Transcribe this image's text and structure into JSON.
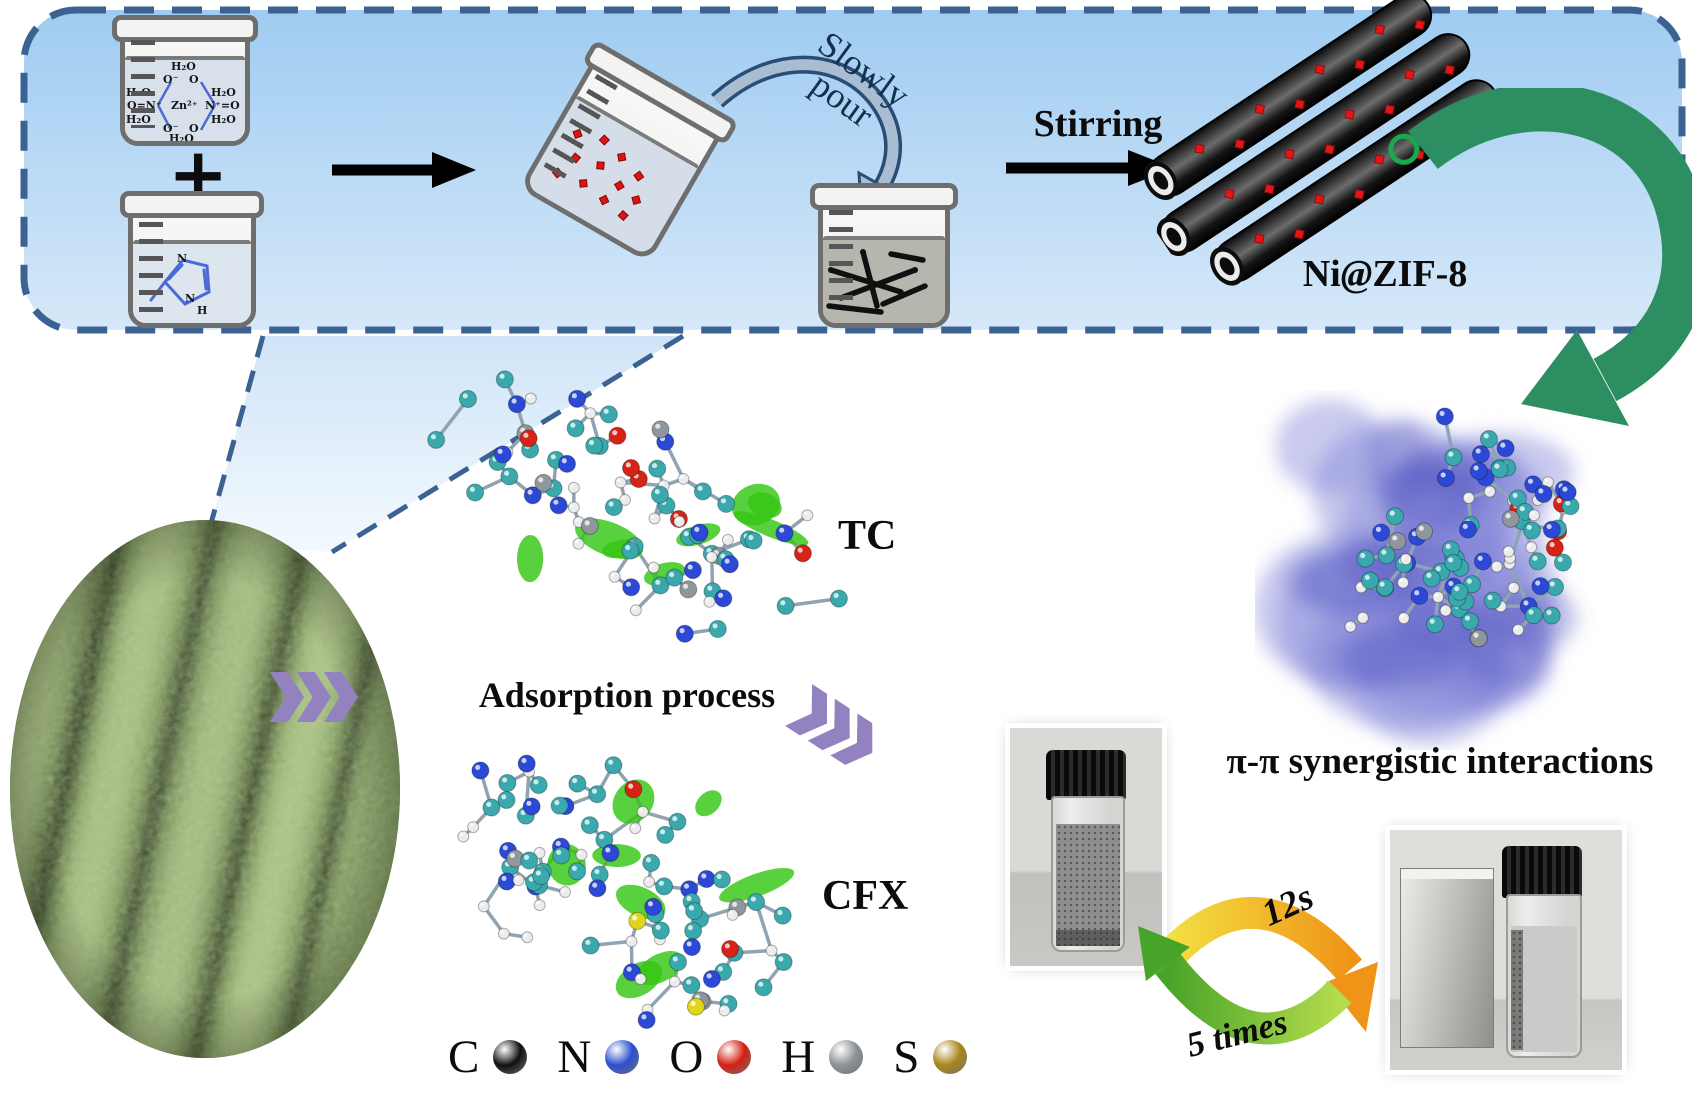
{
  "synthesis_box": {
    "zinc_solution": {
      "waters": [
        "H₂O",
        "H₂O",
        "H₂O",
        "H₂O",
        "H₂O",
        "H₂O"
      ],
      "o_top_left": "O⁻",
      "o_top_right": "O",
      "nitrate_left": "O=N⁺",
      "zinc": "Zn²⁺",
      "nitrate_right": "N⁺=O",
      "o_bottom_left": "O⁻",
      "o_bottom_right": "O"
    },
    "plus_sign": "+",
    "hmim_solution": {
      "n_top": "N",
      "n_bottom": "N",
      "h": "H"
    },
    "pour_label_line1": "Slowly",
    "pour_label_line2": "pour",
    "stirring_label": "Stirring",
    "product_name": {
      "prefix": "Ni",
      "at": "@",
      "suffix": "ZIF-8"
    }
  },
  "adsorption_section": {
    "process_label": "Adsorption process",
    "tc_label": "TC",
    "cfx_label": "CFX"
  },
  "interaction_label": "π-π synergistic interactions",
  "separation_cycle": {
    "separation_time": "12s",
    "reuse_count": "5 times"
  },
  "atom_legend": {
    "items": [
      {
        "symbol": "C",
        "color": "#111111"
      },
      {
        "symbol": "N",
        "color": "#2b4fd0"
      },
      {
        "symbol": "O",
        "color": "#d42010"
      },
      {
        "symbol": "H",
        "color": "#8d9296"
      },
      {
        "symbol": "S",
        "color": "#a8861b"
      }
    ]
  },
  "colors": {
    "box_border": "#3b6292",
    "box_fill_top": "#9fccf1",
    "box_fill_bottom": "#d6e8f9",
    "green_arrow": "#2d8e62",
    "chevron": "#9282bf",
    "red_particle": "#e31616"
  }
}
